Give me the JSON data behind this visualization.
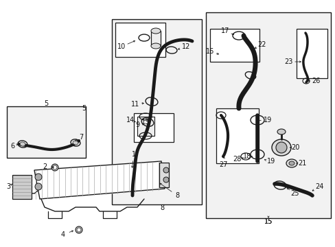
{
  "bg_color": "#ffffff",
  "lc": "#1a1a1a",
  "gray_fill": "#e8e8e8",
  "light_fill": "#f2f2f2",
  "fig_width": 4.89,
  "fig_height": 3.6,
  "dpi": 100
}
